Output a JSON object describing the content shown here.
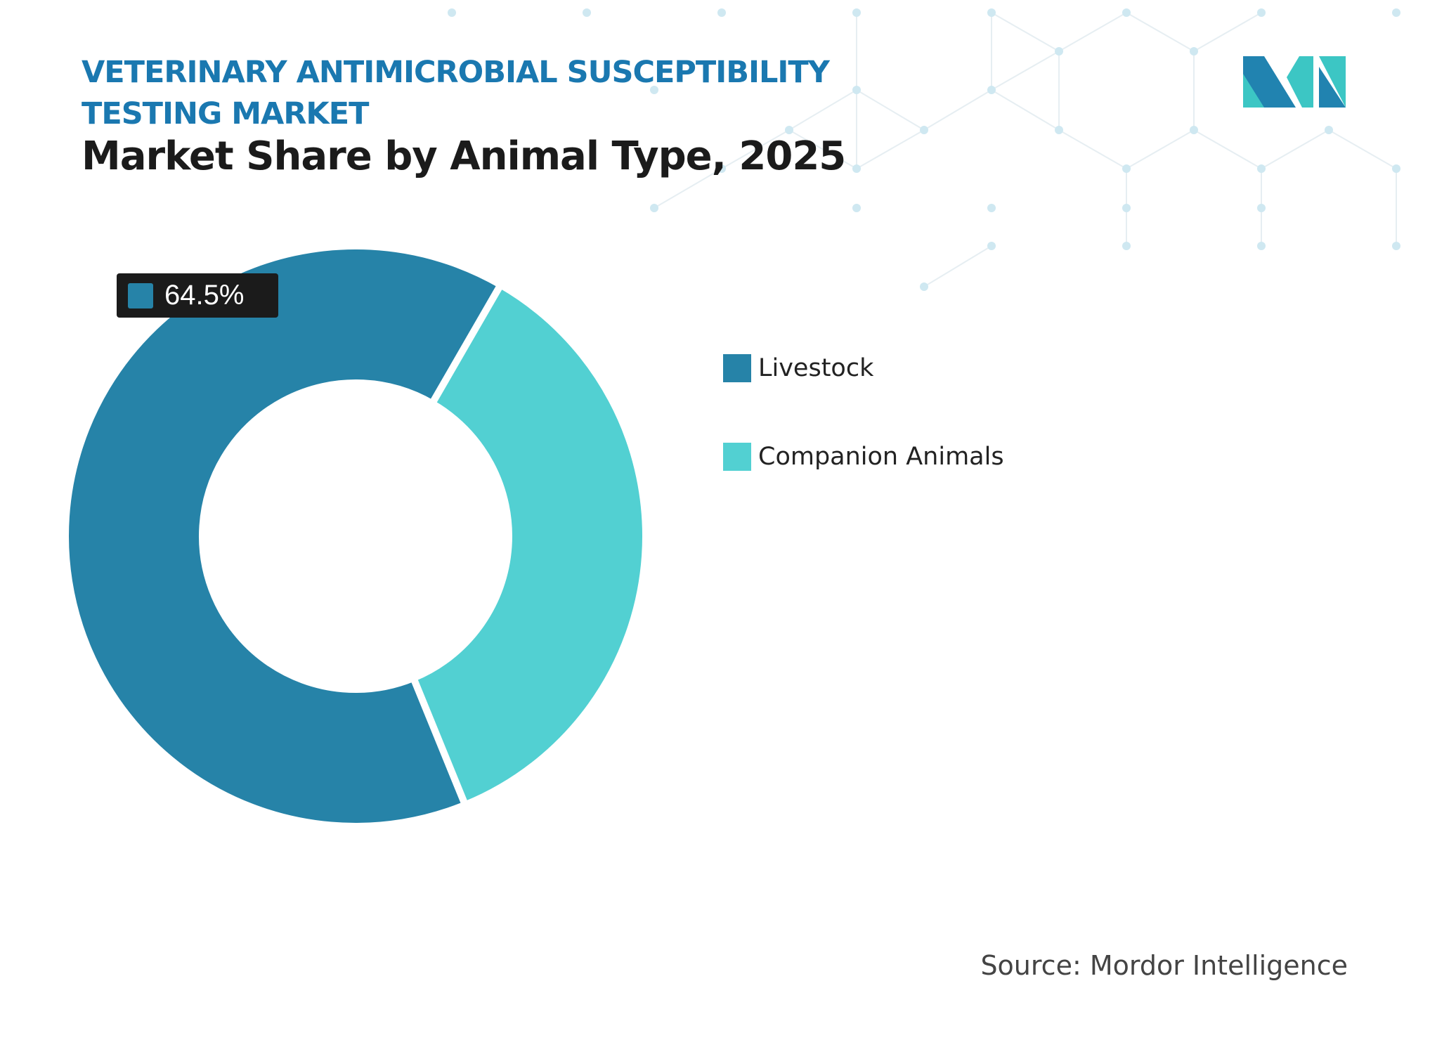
{
  "header": {
    "title": "VETERINARY ANTIMICROBIAL SUSCEPTIBILITY TESTING MARKET",
    "subtitle": "Market Share by Animal Type, 2025"
  },
  "chart_data": {
    "type": "pie",
    "variant": "donut",
    "title": "Market Share by Animal Type, 2025",
    "categories": [
      "Livestock",
      "Companion Animals"
    ],
    "values": [
      64.5,
      35.5
    ],
    "colors": [
      "#2683a8",
      "#52d0d2"
    ],
    "data_labels": [
      {
        "category": "Livestock",
        "text": "64.5%"
      }
    ],
    "legend": "right"
  },
  "source": "Source: Mordor Intelligence",
  "logo": {
    "text": "Mordor Intelligence",
    "colors": [
      "#2183b0",
      "#3cc6c4"
    ]
  }
}
